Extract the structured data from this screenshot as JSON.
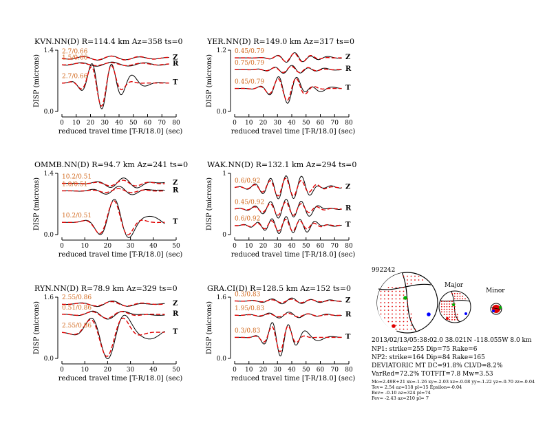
{
  "colors": {
    "observed": "#000000",
    "synthetic": "#e00000",
    "annotation": "#d2691e",
    "background": "#ffffff"
  },
  "chart_data": [
    {
      "type": "line",
      "title": "KVN.NN(D) R=114.4 km Az=358 ts=0",
      "xlabel": "reduced travel time [T-R/18.0] (sec)",
      "ylabel": "DISP (microns)",
      "xlim": [
        0,
        80
      ],
      "xticks": [
        "0",
        "10",
        "20",
        "30",
        "40",
        "50",
        "60",
        "70",
        "80"
      ],
      "ylim": [
        0,
        1.4
      ],
      "yticks": [
        "0.0",
        "1.4"
      ],
      "trace_end": 75,
      "traces": [
        {
          "component": "Z",
          "annotation": "2.7/0.66",
          "base": 1.22,
          "amp": 0.05,
          "center": 35,
          "period": 20,
          "width": 26,
          "syn_scale": 0.9
        },
        {
          "component": "R",
          "annotation": "1.5/0.66",
          "base": 1.08,
          "amp": 0.05,
          "center": 35,
          "period": 22,
          "width": 26,
          "syn_scale": 0.7
        },
        {
          "component": "T",
          "annotation": "2.7/0.66",
          "base": 0.65,
          "amp": -0.62,
          "center": 28,
          "period": 15,
          "width": 9,
          "syn_scale": 0.85
        }
      ]
    },
    {
      "type": "line",
      "title": "YER.NN(D) R=149.0 km Az=317 ts=0",
      "xlabel": "reduced travel time [T-R/18.0] (sec)",
      "ylabel": "DISP (microns)",
      "xlim": [
        0,
        80
      ],
      "xticks": [
        "0",
        "10",
        "20",
        "30",
        "40",
        "50",
        "60",
        "70",
        "80"
      ],
      "ylim": [
        0,
        1.2
      ],
      "yticks": [
        "0.0",
        "1.2"
      ],
      "trace_end": 75,
      "traces": [
        {
          "component": "Z",
          "annotation": "0.45/0.79",
          "base": 1.05,
          "amp": 0.1,
          "center": 42,
          "period": 12,
          "width": 10,
          "syn_scale": 0.9
        },
        {
          "component": "R",
          "annotation": "0.75/0.79",
          "base": 0.82,
          "amp": 0.08,
          "center": 40,
          "period": 12,
          "width": 12,
          "syn_scale": 0.8
        },
        {
          "component": "T",
          "annotation": "0.45/0.79",
          "base": 0.45,
          "amp": -0.28,
          "center": 37,
          "period": 13,
          "width": 10,
          "syn_scale": 0.85
        }
      ]
    },
    {
      "type": "line",
      "title": "OMMB.NN(D) R=94.7 km Az=241 ts=0",
      "xlabel": "reduced travel time [T-R/18.0] (sec)",
      "ylabel": "DISP (microns)",
      "xlim": [
        0,
        50
      ],
      "xticks": [
        "0",
        "10",
        "20",
        "30",
        "40",
        "50"
      ],
      "ylim": [
        0,
        1.4
      ],
      "yticks": [
        "0.0",
        "1.4"
      ],
      "trace_end": 45,
      "traces": [
        {
          "component": "Z",
          "annotation": "10.2/0.51",
          "base": 1.17,
          "amp": 0.12,
          "center": 27,
          "period": 12,
          "width": 8,
          "syn_scale": 0.6
        },
        {
          "component": "R",
          "annotation": "1.0/0.51",
          "base": 1.0,
          "amp": 0.1,
          "center": 25,
          "period": 12,
          "width": 8,
          "syn_scale": 0.5
        },
        {
          "component": "T",
          "annotation": "10.2/0.51",
          "base": 0.28,
          "amp": 0.52,
          "center": 23,
          "period": 14,
          "width": 6,
          "syn_scale": 0.95
        }
      ]
    },
    {
      "type": "line",
      "title": "WAK.NN(D) R=132.1 km Az=294 ts=0",
      "xlabel": "reduced travel time [T-R/18.0] (sec)",
      "ylabel": "DISP (microns)",
      "xlim": [
        0,
        80
      ],
      "xticks": [
        "0",
        "10",
        "20",
        "30",
        "40",
        "50",
        "60",
        "70",
        "80"
      ],
      "ylim": [
        0,
        1.0
      ],
      "yticks": [
        "0",
        "1"
      ],
      "trace_end": 75,
      "traces": [
        {
          "component": "Z",
          "annotation": "0.6/0.92",
          "base": 0.77,
          "amp": 0.2,
          "center": 36,
          "period": 11,
          "width": 14,
          "syn_scale": 0.75
        },
        {
          "component": "R",
          "annotation": "0.45/0.92",
          "base": 0.42,
          "amp": 0.16,
          "center": 36,
          "period": 11,
          "width": 14,
          "syn_scale": 0.7
        },
        {
          "component": "T",
          "annotation": "0.6/0.92",
          "base": 0.15,
          "amp": 0.14,
          "center": 36,
          "period": 10,
          "width": 14,
          "syn_scale": 0.7
        }
      ]
    },
    {
      "type": "line",
      "title": "RYN.NN(D) R=78.9 km Az=329 ts=0",
      "xlabel": "reduced travel time [T-R/18.0] (sec)",
      "ylabel": "DISP (microns)",
      "xlim": [
        0,
        50
      ],
      "xticks": [
        "0",
        "10",
        "20",
        "30",
        "40",
        "50"
      ],
      "ylim": [
        0,
        1.6
      ],
      "yticks": [
        "0.0",
        "1.6"
      ],
      "trace_end": 45,
      "traces": [
        {
          "component": "Z",
          "annotation": "2.55/0.86",
          "base": 1.42,
          "amp": 0.08,
          "center": 22,
          "period": 14,
          "width": 10,
          "syn_scale": 0.8
        },
        {
          "component": "R",
          "annotation": "0.51/0.86",
          "base": 1.15,
          "amp": -0.12,
          "center": 20,
          "period": 14,
          "width": 8,
          "syn_scale": 0.85
        },
        {
          "component": "T",
          "annotation": "2.55/0.86",
          "base": 0.68,
          "amp": -0.66,
          "center": 20,
          "period": 16,
          "width": 7,
          "syn_scale": 0.95
        }
      ]
    },
    {
      "type": "line",
      "title": "GRA.CI(D) R=128.5 km Az=152 ts=0",
      "xlabel": "reduced travel time [T-R/18.0] (sec)",
      "ylabel": "DISP (microns)",
      "xlim": [
        0,
        80
      ],
      "xticks": [
        "0",
        "10",
        "20",
        "30",
        "40",
        "50",
        "60",
        "70",
        "80"
      ],
      "ylim": [
        0,
        1.6
      ],
      "yticks": [
        "0.0",
        "1.6"
      ],
      "trace_end": 75,
      "traces": [
        {
          "component": "Z",
          "annotation": "0.3/0.83",
          "base": 1.5,
          "amp": 0.08,
          "center": 40,
          "period": 14,
          "width": 16,
          "syn_scale": 0.6
        },
        {
          "component": "R",
          "annotation": "1.95/0.83",
          "base": 1.13,
          "amp": 0.08,
          "center": 38,
          "period": 14,
          "width": 16,
          "syn_scale": 0.6
        },
        {
          "component": "T",
          "annotation": "0.3/0.83",
          "base": 0.55,
          "amp": -0.5,
          "center": 32,
          "period": 12,
          "width": 8,
          "syn_scale": 0.75
        }
      ]
    }
  ],
  "mechanism": {
    "event_id": "992242",
    "major_label": "Major",
    "minor_label": "Minor",
    "lines": [
      "2013/02/13/05:38:02.0 38.021N -118.055W 8.0 km",
      "NP1: strike=255 Dip=75 Rake=6",
      "NP2: strike=164 Dip=84 Rake=165",
      "DEVIATORIC MT DC=91.8% CLVD=8.2%",
      "VarRed=72.2% TOTFIT=7.8 Mw=3.53"
    ],
    "small_lines": [
      "Mo=2.49E+21 xx=-1.26 xy=-2.03 xz=-0.08 yy=-1.22 yz=-0.70 zz=-0.04",
      "Tev= 2.54 az=118 pl=15 Epsilon=-0.04",
      "Bev= -0.10 az=324 pl=74",
      "Pev= -2.43 az=210 pl= 7"
    ]
  }
}
